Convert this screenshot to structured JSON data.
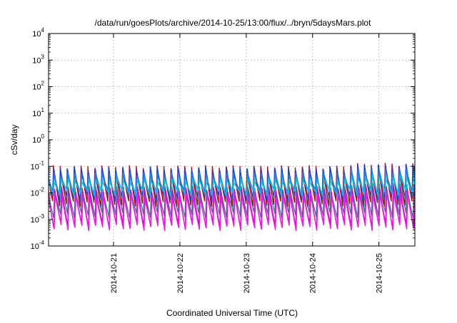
{
  "chart_data": {
    "type": "line",
    "title": "/data/run/goesPlots/archive/2014-10-25/13:00/flux/../bryn/5daysMars.plot",
    "xlabel": "Coordinated Universal Time (UTC)",
    "ylabel": "cSv/day",
    "y_scale": "log",
    "ylim": [
      0.0001,
      10000
    ],
    "y_ticks": [
      {
        "base": "10",
        "exp": "-4"
      },
      {
        "base": "10",
        "exp": "-3"
      },
      {
        "base": "10",
        "exp": "-2"
      },
      {
        "base": "10",
        "exp": "-1"
      },
      {
        "base": "10",
        "exp": "0"
      },
      {
        "base": "10",
        "exp": "1"
      },
      {
        "base": "10",
        "exp": "2"
      },
      {
        "base": "10",
        "exp": "3"
      },
      {
        "base": "10",
        "exp": "4"
      }
    ],
    "xlim": [
      "2014-10-20 00:30",
      "2014-10-25 13:00"
    ],
    "x_ticks": [
      "2014-10-21",
      "2014-10-22",
      "2014-10-23",
      "2014-10-24",
      "2014-10-25"
    ],
    "grid": true,
    "legend": "none",
    "pattern": {
      "period_hours": 2.5,
      "description_values": "each series repeats a sawtooth: sharp rise to a peak then gradual decay"
    },
    "series": [
      {
        "color": "#cc0000",
        "peak": 0.09,
        "trough": 0.004,
        "late_peak": 0.11
      },
      {
        "color": "#1f3fd8",
        "peak": 0.08,
        "trough": 0.006,
        "late_peak": 0.1
      },
      {
        "color": "#2080ff",
        "peak": 0.05,
        "trough": 0.01,
        "late_peak": 0.07
      },
      {
        "color": "#00c8d8",
        "peak": 0.03,
        "trough": 0.01,
        "late_peak": 0.04
      },
      {
        "color": "#209080",
        "peak": 0.015,
        "trough": 0.0015,
        "late_peak": 0.02
      },
      {
        "color": "#d000c8",
        "peak": 0.012,
        "trough": 0.0006,
        "late_peak": 0.015
      },
      {
        "color": "#ff10f0",
        "peak": 0.008,
        "trough": 0.0005,
        "late_peak": 0.01
      }
    ]
  }
}
